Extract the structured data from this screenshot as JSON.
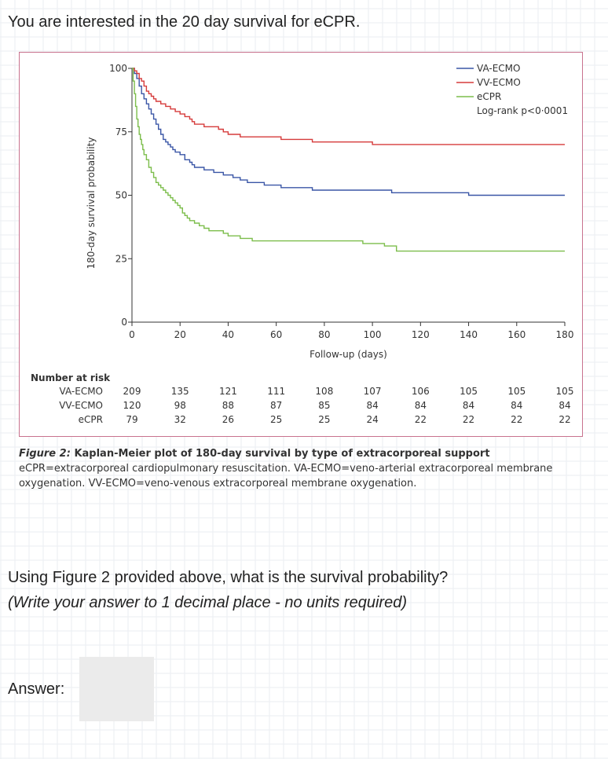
{
  "question": {
    "intro": "You are interested in the 20 day survival for eCPR.",
    "prompt": "Using Figure 2 provided above, what is the survival probability?",
    "instruction": "(Write your answer to 1 decimal place - no units required)",
    "answer_label": "Answer:",
    "answer_value": ""
  },
  "caption": {
    "figure_label": "Figure 2:",
    "title": "Kaplan-Meier plot of 180-day survival by type of extracorporeal support",
    "body": "eCPR=extracorporeal cardiopulmonary resuscitation. VA-ECMO=veno-arterial extracorporeal membrane oxygenation. VV-ECMO=veno-venous extracorporeal membrane oxygenation."
  },
  "chart_data": {
    "type": "line",
    "title": "",
    "xlabel": "Follow-up (days)",
    "ylabel": "180-day survival probability",
    "xlim": [
      0,
      180
    ],
    "ylim": [
      0,
      100
    ],
    "xticks": [
      0,
      20,
      40,
      60,
      80,
      100,
      120,
      140,
      160,
      180
    ],
    "yticks": [
      0,
      25,
      50,
      75,
      100
    ],
    "legend": {
      "position": "top-right",
      "entries": [
        "VA-ECMO",
        "VV-ECMO",
        "eCPR"
      ],
      "annotation": "Log-rank p<0·0001"
    },
    "series": [
      {
        "name": "VA-ECMO",
        "color": "#3a56a6",
        "x": [
          0,
          1,
          2,
          3,
          4,
          5,
          6,
          7,
          8,
          9,
          10,
          11,
          12,
          13,
          14,
          15,
          16,
          17,
          18,
          20,
          22,
          24,
          25,
          26,
          28,
          30,
          32,
          34,
          36,
          38,
          40,
          42,
          45,
          48,
          52,
          55,
          58,
          62,
          65,
          70,
          75,
          80,
          100,
          108,
          120,
          125,
          140,
          180
        ],
        "y": [
          100,
          98,
          96,
          93,
          90,
          88,
          86,
          84,
          82,
          80,
          78,
          76,
          74,
          72,
          71,
          70,
          69,
          68,
          67,
          66,
          64,
          63,
          62,
          61,
          61,
          60,
          60,
          59,
          59,
          58,
          58,
          57,
          56,
          55,
          55,
          54,
          54,
          53,
          53,
          53,
          52,
          52,
          52,
          51,
          51,
          51,
          50,
          50
        ]
      },
      {
        "name": "VV-ECMO",
        "color": "#d63b3b",
        "x": [
          0,
          1,
          2,
          3,
          4,
          5,
          6,
          7,
          8,
          9,
          10,
          12,
          14,
          16,
          18,
          20,
          22,
          24,
          25,
          26,
          28,
          30,
          32,
          34,
          36,
          38,
          40,
          45,
          50,
          55,
          58,
          60,
          62,
          65,
          75,
          80,
          100,
          180
        ],
        "y": [
          100,
          99,
          98,
          96,
          95,
          93,
          91,
          90,
          89,
          88,
          87,
          86,
          85,
          84,
          83,
          82,
          81,
          80,
          79,
          78,
          78,
          77,
          77,
          77,
          76,
          75,
          74,
          73,
          73,
          73,
          73,
          73,
          72,
          72,
          71,
          71,
          70,
          70
        ]
      },
      {
        "name": "eCPR",
        "color": "#7cbd4b",
        "x": [
          0,
          0.5,
          1,
          1.5,
          2,
          2.5,
          3,
          3.5,
          4,
          4.5,
          5,
          6,
          7,
          8,
          9,
          10,
          11,
          12,
          13,
          14,
          15,
          16,
          17,
          18,
          19,
          20,
          21,
          22,
          23,
          24,
          26,
          28,
          30,
          32,
          34,
          36,
          38,
          40,
          45,
          50,
          55,
          60,
          80,
          90,
          96,
          100,
          105,
          110,
          180
        ],
        "y": [
          100,
          95,
          90,
          85,
          80,
          77,
          74,
          72,
          70,
          68,
          66,
          64,
          61,
          59,
          57,
          55,
          54,
          53,
          52,
          51,
          50,
          49,
          48,
          47,
          46,
          45,
          43,
          42,
          41,
          40,
          39,
          38,
          37,
          36,
          36,
          36,
          35,
          34,
          33,
          32,
          32,
          32,
          32,
          32,
          31,
          31,
          30,
          28,
          28
        ]
      }
    ],
    "risk_table": {
      "title": "Number at risk",
      "timepoints": [
        0,
        20,
        40,
        60,
        80,
        100,
        120,
        140,
        160,
        180
      ],
      "rows": [
        {
          "label": "VA-ECMO",
          "values": [
            "209",
            "135",
            "121",
            "111",
            "108",
            "107",
            "106",
            "105",
            "105",
            "105"
          ]
        },
        {
          "label": "VV-ECMO",
          "values": [
            "120",
            "98",
            "88",
            "87",
            "85",
            "84",
            "84",
            "84",
            "84",
            "84"
          ]
        },
        {
          "label": "eCPR",
          "values": [
            "79",
            "32",
            "26",
            "25",
            "25",
            "24",
            "22",
            "22",
            "22",
            "22"
          ]
        }
      ]
    }
  }
}
